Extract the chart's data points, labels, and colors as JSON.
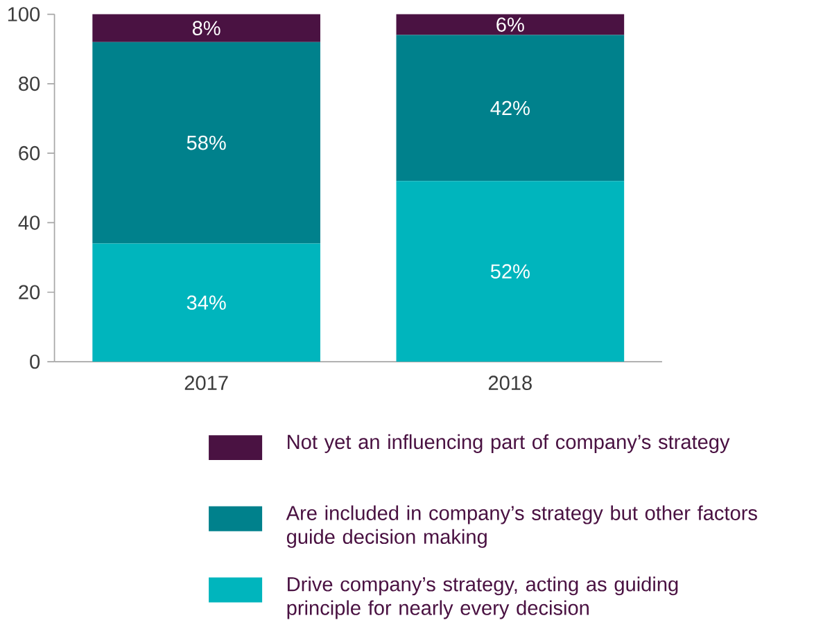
{
  "chart_data": {
    "type": "bar",
    "stacked": true,
    "categories": [
      "2017",
      "2018"
    ],
    "series": [
      {
        "name": "Drive company’s strategy, acting as guiding principle for nearly every decision",
        "color": "#00b5bd",
        "values": [
          34,
          52
        ],
        "value_labels": [
          "34%",
          "52%"
        ]
      },
      {
        "name": "Are included in company’s strategy but other factors guide decision making",
        "color": "#00818c",
        "values": [
          58,
          42
        ],
        "value_labels": [
          "58%",
          "42%"
        ]
      },
      {
        "name": "Not yet an influencing part of company’s strategy",
        "color": "#4a1242",
        "values": [
          8,
          6
        ],
        "value_labels": [
          "8%",
          "6%"
        ]
      }
    ],
    "ylim": [
      0,
      100
    ],
    "yticks": [
      0,
      20,
      40,
      60,
      80,
      100
    ],
    "grid": false,
    "legend": "bottom"
  }
}
